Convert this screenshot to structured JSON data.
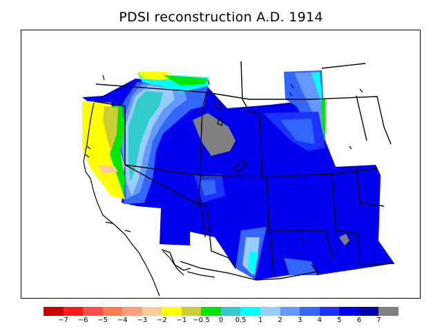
{
  "title": "PDSI reconstruction A.D. 1914",
  "legend": {
    "colors": [
      "#cc0000",
      "#ff1a1a",
      "#ff4d4d",
      "#ff7a4d",
      "#ffa07a",
      "#ffcc99",
      "#ffff00",
      "#cccc33",
      "#00e600",
      "#33cccc",
      "#00ffff",
      "#99ccff",
      "#6699ff",
      "#3366ff",
      "#1a33ff",
      "#0000ee",
      "#0000aa",
      "#808080"
    ],
    "labels": [
      "−7",
      "−6",
      "−5",
      "−4",
      "−3",
      "−2",
      "−1",
      "−0.5",
      "0",
      "0.5",
      "1",
      "2",
      "3",
      "4",
      "5",
      "6",
      "7"
    ]
  }
}
